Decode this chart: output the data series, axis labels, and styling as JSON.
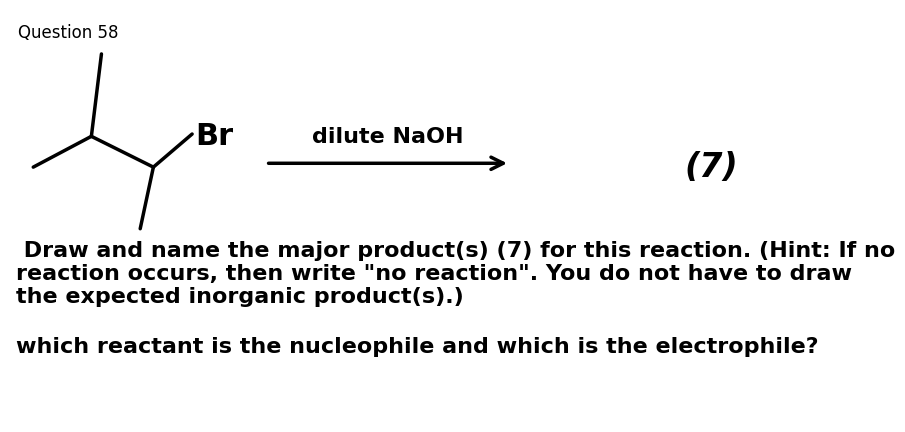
{
  "title": "Question 58",
  "reagent": "dilute NaOH",
  "mark": "(7)",
  "question_line1": " Draw and name the major product(s) (7) for this reaction. (Hint: If no",
  "question_line2": "reaction occurs, then write \"no reaction\". You do not have to draw",
  "question_line3": "the expected inorganic product(s).)",
  "question2": "which reactant is the nucleophile and which is the electrophile?",
  "bg_color": "#ffffff",
  "text_color": "#000000",
  "molecule_color": "#000000",
  "arrow_color": "#000000",
  "title_fontsize": 12,
  "reagent_fontsize": 16,
  "mark_fontsize": 24,
  "question_fontsize": 16,
  "br_label": "Br",
  "br_fontsize": 22,
  "lw": 2.5
}
